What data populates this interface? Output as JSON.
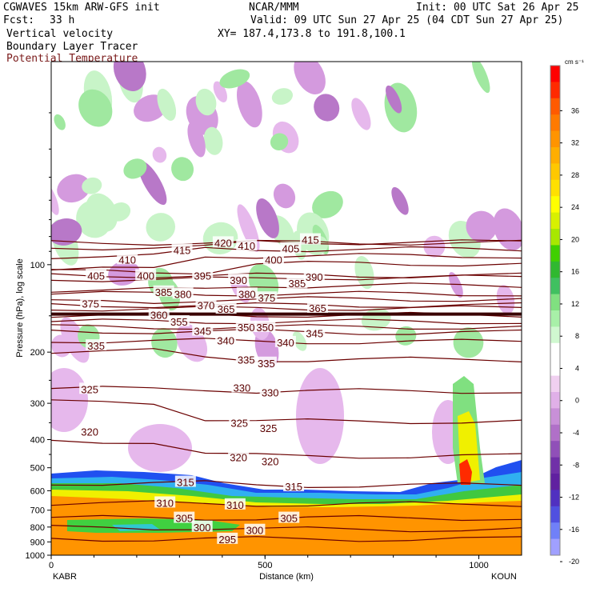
{
  "header": {
    "model": "CGWAVES 15km ARW-GFS init",
    "org": "NCAR/MMM",
    "init": "Init: 00 UTC Sat 26 Apr 25",
    "fcst_label": "Fcst:",
    "fcst_value": "33 h",
    "valid": "Valid: 09 UTC Sun 27 Apr 25 (04 CDT Sun 27 Apr 25)",
    "field1": "Vertical velocity",
    "field2": "Boundary Layer Tracer",
    "field3": "Potential Temperature",
    "xy": "XY= 187.4,173.8 to 191.8,100.1"
  },
  "colors": {
    "theta": "#6b0000",
    "field3_text": "#7a1a1a"
  },
  "chart_data": {
    "type": "heatmap",
    "xlabel": "Distance (km)",
    "ylabel": "Pressure (hPa), log scale",
    "x_range": [
      0,
      1100
    ],
    "y_range_hpa": [
      1000,
      20
    ],
    "y_scale": "log",
    "x_ticks": [
      "0",
      "500",
      "1000"
    ],
    "x_tick_values": [
      0,
      500,
      1000
    ],
    "y_ticks": [
      "100",
      "200",
      "300",
      "400",
      "500",
      "600",
      "700",
      "800",
      "900",
      "1000"
    ],
    "y_tick_values": [
      100,
      200,
      300,
      400,
      500,
      600,
      700,
      800,
      900,
      1000
    ],
    "endpoints": {
      "left": "KABR",
      "right": "KOUN"
    },
    "colorbar": {
      "units": "cm s⁻¹",
      "labels": [
        "36",
        "32",
        "28",
        "24",
        "20",
        "16",
        "12",
        "8",
        "4",
        "0",
        "-4",
        "-8",
        "-12",
        "-16",
        "-20"
      ],
      "colors": [
        "#ff0000",
        "#ff2a00",
        "#ff5a00",
        "#ff7a00",
        "#ff9400",
        "#ffae00",
        "#ffc800",
        "#ffe000",
        "#ffff00",
        "#d8f000",
        "#a8e800",
        "#40d000",
        "#30b830",
        "#40c060",
        "#80e080",
        "#a8f0a8",
        "#d0f8d0",
        "#ffffff",
        "#ffffff",
        "#f0d0f0",
        "#e0b0e8",
        "#c890d8",
        "#b070c8",
        "#9050b8",
        "#7030a8",
        "#6020a0",
        "#5030c0",
        "#5050e0",
        "#7080f8",
        "#a0a0ff"
      ]
    },
    "theta_labels": [
      {
        "v": "415",
        "x": 306,
        "p": 89
      },
      {
        "v": "420",
        "x": 402,
        "p": 84
      },
      {
        "v": "410",
        "x": 457,
        "p": 86
      },
      {
        "v": "405",
        "x": 560,
        "p": 88
      },
      {
        "v": "415",
        "x": 606,
        "p": 82
      },
      {
        "v": "410",
        "x": 178,
        "p": 96
      },
      {
        "v": "400",
        "x": 520,
        "p": 96
      },
      {
        "v": "405",
        "x": 105,
        "p": 109
      },
      {
        "v": "400",
        "x": 221,
        "p": 109
      },
      {
        "v": "395",
        "x": 354,
        "p": 109
      },
      {
        "v": "390",
        "x": 438,
        "p": 113
      },
      {
        "v": "385",
        "x": 575,
        "p": 116
      },
      {
        "v": "390",
        "x": 615,
        "p": 110
      },
      {
        "v": "385",
        "x": 263,
        "p": 124
      },
      {
        "v": "380",
        "x": 308,
        "p": 126
      },
      {
        "v": "380",
        "x": 458,
        "p": 126
      },
      {
        "v": "375",
        "x": 504,
        "p": 130
      },
      {
        "v": "375",
        "x": 92,
        "p": 136
      },
      {
        "v": "370",
        "x": 362,
        "p": 138
      },
      {
        "v": "365",
        "x": 409,
        "p": 142
      },
      {
        "v": "365",
        "x": 623,
        "p": 141
      },
      {
        "v": "360",
        "x": 252,
        "p": 149
      },
      {
        "v": "355",
        "x": 299,
        "p": 157
      },
      {
        "v": "345",
        "x": 354,
        "p": 169
      },
      {
        "v": "350",
        "x": 456,
        "p": 164
      },
      {
        "v": "350",
        "x": 500,
        "p": 164
      },
      {
        "v": "345",
        "x": 616,
        "p": 172
      },
      {
        "v": "340",
        "x": 408,
        "p": 182
      },
      {
        "v": "340",
        "x": 548,
        "p": 185
      },
      {
        "v": "335",
        "x": 105,
        "p": 190
      },
      {
        "v": "335",
        "x": 456,
        "p": 212
      },
      {
        "v": "335",
        "x": 503,
        "p": 218
      },
      {
        "v": "325",
        "x": 90,
        "p": 268
      },
      {
        "v": "330",
        "x": 446,
        "p": 265
      },
      {
        "v": "330",
        "x": 512,
        "p": 275
      },
      {
        "v": "325",
        "x": 440,
        "p": 350
      },
      {
        "v": "325",
        "x": 508,
        "p": 365
      },
      {
        "v": "320",
        "x": 90,
        "p": 375
      },
      {
        "v": "320",
        "x": 438,
        "p": 460
      },
      {
        "v": "320",
        "x": 512,
        "p": 475
      },
      {
        "v": "315",
        "x": 314,
        "p": 560
      },
      {
        "v": "315",
        "x": 567,
        "p": 580
      },
      {
        "v": "310",
        "x": 266,
        "p": 660
      },
      {
        "v": "310",
        "x": 430,
        "p": 670
      },
      {
        "v": "305",
        "x": 311,
        "p": 745
      },
      {
        "v": "305",
        "x": 556,
        "p": 745
      },
      {
        "v": "300",
        "x": 353,
        "p": 800
      },
      {
        "v": "300",
        "x": 476,
        "p": 820
      },
      {
        "v": "295",
        "x": 412,
        "p": 880
      }
    ]
  }
}
